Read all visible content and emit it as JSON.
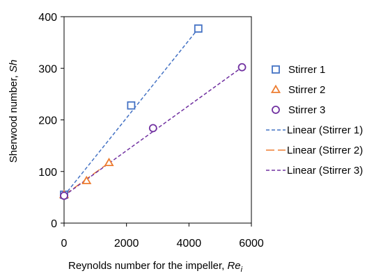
{
  "chart_data": {
    "type": "scatter",
    "xlabel": "Reynolds number for the impeller, ",
    "xlabel_var": "Re",
    "xlabel_sub": "i",
    "ylabel": "Sherwood number, ",
    "ylabel_var": "Sh",
    "xlim": [
      0,
      6000
    ],
    "ylim": [
      0,
      400
    ],
    "xticks": [
      0,
      2000,
      4000,
      6000
    ],
    "yticks": [
      0,
      100,
      200,
      300,
      400
    ],
    "grid": false,
    "legend_position": "right",
    "series": [
      {
        "name": "Stirrer 1",
        "marker": "square",
        "color": "#4472C4",
        "x": [
          0,
          2150,
          4300
        ],
        "y": [
          55,
          228,
          377
        ]
      },
      {
        "name": "Stirrer 2",
        "marker": "triangle",
        "color": "#ED7D31",
        "x": [
          0,
          720,
          1440
        ],
        "y": [
          55,
          82,
          117
        ]
      },
      {
        "name": "Stirrer 3",
        "marker": "circle",
        "color": "#7030A0",
        "x": [
          0,
          2850,
          5700
        ],
        "y": [
          53,
          184,
          302
        ]
      }
    ],
    "trendlines": [
      {
        "name": "Linear (Stirrer 1)",
        "color": "#4472C4",
        "dash": "short",
        "x": [
          0,
          4300
        ],
        "y": [
          53,
          377
        ]
      },
      {
        "name": "Linear (Stirrer 2)",
        "color": "#ED7D31",
        "dash": "long",
        "x": [
          0,
          1440
        ],
        "y": [
          54,
          117
        ]
      },
      {
        "name": "Linear (Stirrer 3)",
        "color": "#7030A0",
        "dash": "short",
        "x": [
          0,
          5700
        ],
        "y": [
          53,
          302
        ]
      }
    ]
  }
}
